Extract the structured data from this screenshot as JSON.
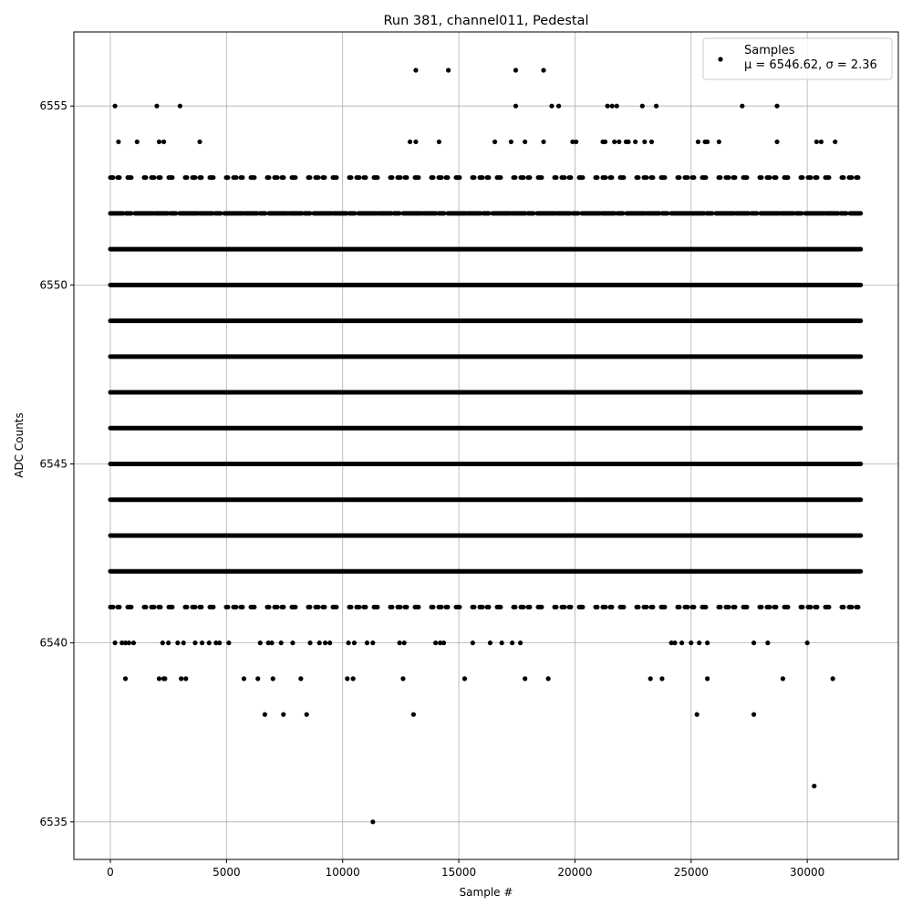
{
  "chart_data": {
    "type": "scatter",
    "title": "Run 381, channel011, Pedestal",
    "xlabel": "Sample #",
    "ylabel": "ADC Counts",
    "xlim": [
      -1570,
      33920
    ],
    "ylim": [
      6533.95,
      6557.07
    ],
    "xticks": [
      0,
      5000,
      10000,
      15000,
      20000,
      25000,
      30000
    ],
    "yticks": [
      6535,
      6540,
      6545,
      6550,
      6555
    ],
    "grid": true,
    "legend": {
      "placement": "top-right",
      "label": "Samples",
      "stats": "μ = 6546.62, σ = 2.36"
    },
    "marker_color": "#000000",
    "sample_range": [
      0,
      32300
    ],
    "dense_levels": [
      {
        "y": 6541,
        "density": "sparse"
      },
      {
        "y": 6542,
        "density": "dense"
      },
      {
        "y": 6543,
        "density": "dense"
      },
      {
        "y": 6544,
        "density": "dense"
      },
      {
        "y": 6545,
        "density": "dense"
      },
      {
        "y": 6546,
        "density": "dense"
      },
      {
        "y": 6547,
        "density": "dense"
      },
      {
        "y": 6548,
        "density": "dense"
      },
      {
        "y": 6549,
        "density": "dense"
      },
      {
        "y": 6550,
        "density": "dense"
      },
      {
        "y": 6551,
        "density": "dense"
      },
      {
        "y": 6552,
        "density": "medium"
      },
      {
        "y": 6553,
        "density": "sparse"
      }
    ],
    "outliers": [
      {
        "y": 6556,
        "x": [
          13150,
          14550,
          17450,
          18650
        ]
      },
      {
        "y": 6555,
        "x": [
          200,
          2000,
          3000,
          17450,
          19000,
          19300,
          21400,
          21600,
          21800,
          22900,
          23500,
          27200,
          28700
        ]
      },
      {
        "y": 6554,
        "x": [
          350,
          1150,
          2100,
          2300,
          3850,
          12900,
          13150,
          14150,
          16550,
          17250,
          17850,
          18650,
          19900,
          20050,
          21200,
          21300,
          21700,
          21900,
          22200,
          22300,
          22600,
          23000,
          23300,
          25300,
          25600,
          25700,
          26200,
          28700,
          30400,
          30600,
          31200
        ]
      },
      {
        "y": 6540,
        "x": [
          200,
          500,
          650,
          800,
          1000,
          2250,
          2500,
          2900,
          3150,
          3650,
          3950,
          4250,
          4550,
          4700,
          5100,
          6450,
          6800,
          6950,
          7350,
          7850,
          8600,
          9000,
          9250,
          9450,
          10250,
          10500,
          11050,
          11300,
          12450,
          12650,
          14000,
          14200,
          14350,
          15600,
          16350,
          16850,
          17300,
          17650,
          24150,
          24300,
          24600,
          25000,
          25350,
          25700,
          27700,
          28300,
          30000
        ]
      },
      {
        "y": 6539,
        "x": [
          650,
          2100,
          2300,
          2350,
          3050,
          3250,
          5750,
          6350,
          7000,
          8200,
          10200,
          10450,
          12600,
          15250,
          17850,
          18850,
          23250,
          23750,
          25700,
          28950,
          31100
        ]
      },
      {
        "y": 6538,
        "x": [
          6650,
          7450,
          8450,
          13050,
          25250,
          27700
        ]
      },
      {
        "y": 6536,
        "x": [
          30300
        ]
      },
      {
        "y": 6535,
        "x": [
          11300
        ]
      }
    ]
  }
}
